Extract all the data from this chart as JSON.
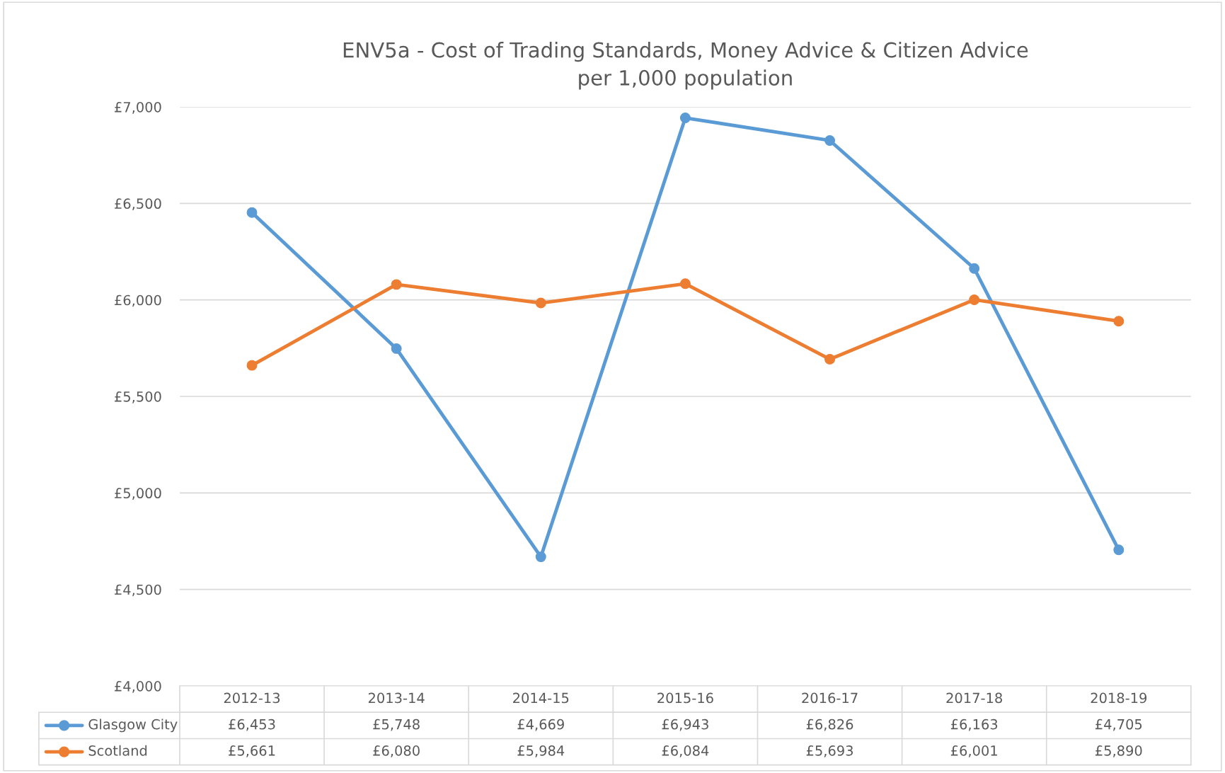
{
  "chart_data": {
    "type": "line",
    "title": "ENV5a - Cost of Trading Standards, Money Advice & Citizen Advice\nper 1,000 population",
    "categories": [
      "2012-13",
      "2013-14",
      "2014-15",
      "2015-16",
      "2016-17",
      "2017-18",
      "2018-19"
    ],
    "series": [
      {
        "name": "Glasgow City",
        "color": "#5b9bd5",
        "values": [
          6453,
          5748,
          4669,
          6943,
          6826,
          6163,
          4705
        ],
        "value_labels": [
          "£6,453",
          "£5,748",
          "£4,669",
          "£6,943",
          "£6,826",
          "£6,163",
          "£4,705"
        ]
      },
      {
        "name": "Scotland",
        "color": "#ed7d31",
        "values": [
          5661,
          6080,
          5984,
          6084,
          5693,
          6001,
          5890
        ],
        "value_labels": [
          "£5,661",
          "£6,080",
          "£5,984",
          "£6,084",
          "£5,693",
          "£6,001",
          "£5,890"
        ]
      }
    ],
    "ylim": [
      4000,
      7000
    ],
    "yticks": [
      {
        "value": 4000,
        "label": "£4,000"
      },
      {
        "value": 4500,
        "label": "£4,500"
      },
      {
        "value": 5000,
        "label": "£5,000"
      },
      {
        "value": 5500,
        "label": "£5,500"
      },
      {
        "value": 6000,
        "label": "£6,000"
      },
      {
        "value": 6500,
        "label": "£6,500"
      },
      {
        "value": 7000,
        "label": "£7,000"
      }
    ],
    "grid": "y",
    "legend": "bottom",
    "marker": "circle",
    "line_style": "solid"
  }
}
